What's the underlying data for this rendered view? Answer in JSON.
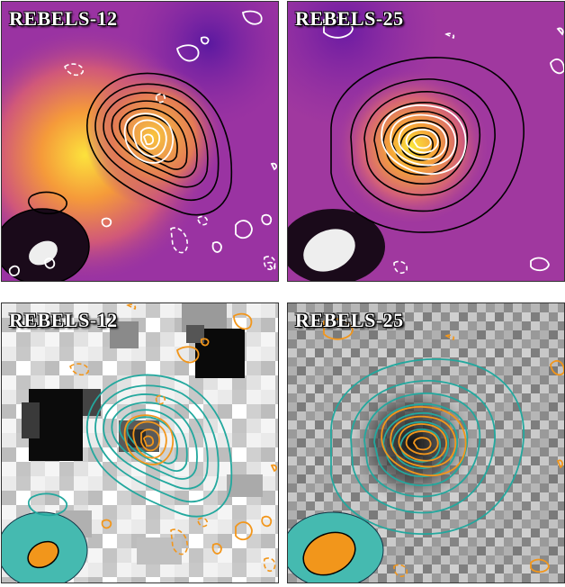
{
  "panels": [
    {
      "label": "REBELS-12",
      "style": "plasma"
    },
    {
      "label": "REBELS-25",
      "style": "plasma"
    },
    {
      "label": "REBELS-12",
      "style": "grayscale"
    },
    {
      "label": "REBELS-25",
      "style": "grayscale"
    }
  ],
  "colors": {
    "plasma_bg": "#a03a9e",
    "plasma_hot": "#f9c93a",
    "outer_contours_top": "#000000",
    "inner_contours_top": "#ffffff",
    "outer_contours_bottom": "#23a89e",
    "inner_contours_bottom": "#f2961b"
  }
}
